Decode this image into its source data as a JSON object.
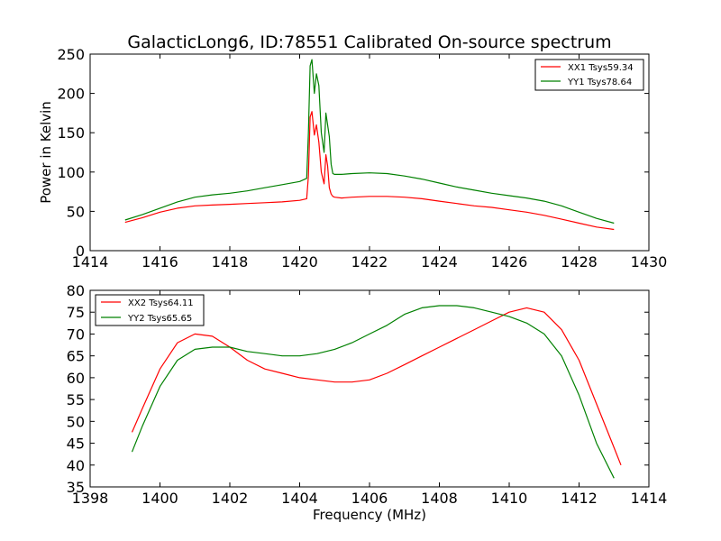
{
  "figure": {
    "title": "GalacticLong6, ID:78551 Calibrated On-source spectrum"
  },
  "chart_data": [
    {
      "type": "line",
      "title": "GalacticLong6, ID:78551 Calibrated On-source spectrum",
      "xlabel": "",
      "ylabel": "Power in Kelvin",
      "xlim": [
        1414,
        1430
      ],
      "ylim": [
        0,
        250
      ],
      "xticks": [
        1414,
        1416,
        1418,
        1420,
        1422,
        1424,
        1426,
        1428,
        1430
      ],
      "yticks": [
        0,
        50,
        100,
        150,
        200,
        250
      ],
      "grid": false,
      "legend_position": "top-right",
      "series": [
        {
          "name": "XX1 Tsys59.34",
          "color": "#ff0000",
          "x": [
            1415.0,
            1415.5,
            1416.0,
            1416.5,
            1417.0,
            1417.5,
            1418.0,
            1418.5,
            1419.0,
            1419.5,
            1420.0,
            1420.2,
            1420.25,
            1420.3,
            1420.35,
            1420.42,
            1420.48,
            1420.55,
            1420.62,
            1420.7,
            1420.75,
            1420.8,
            1420.85,
            1420.9,
            1420.95,
            1421.0,
            1421.2,
            1421.5,
            1422.0,
            1422.5,
            1423.0,
            1423.5,
            1424.0,
            1424.5,
            1425.0,
            1425.5,
            1426.0,
            1426.5,
            1427.0,
            1427.5,
            1428.0,
            1428.5,
            1429.0
          ],
          "y": [
            36,
            42,
            49,
            54,
            57,
            58,
            59,
            60,
            61,
            62,
            64,
            66,
            95,
            170,
            177,
            147,
            160,
            138,
            100,
            85,
            122,
            108,
            80,
            72,
            69,
            68,
            67,
            68,
            69,
            69,
            68,
            66,
            63,
            60,
            57,
            55,
            52,
            49,
            45,
            40,
            35,
            30,
            27
          ]
        },
        {
          "name": "YY1 Tsys78.64",
          "color": "#008000",
          "x": [
            1415.0,
            1415.5,
            1416.0,
            1416.5,
            1417.0,
            1417.5,
            1418.0,
            1418.5,
            1419.0,
            1419.5,
            1420.0,
            1420.2,
            1420.25,
            1420.3,
            1420.35,
            1420.42,
            1420.48,
            1420.55,
            1420.62,
            1420.7,
            1420.75,
            1420.8,
            1420.85,
            1420.9,
            1420.95,
            1421.0,
            1421.2,
            1421.5,
            1422.0,
            1422.5,
            1423.0,
            1423.5,
            1424.0,
            1424.5,
            1425.0,
            1425.5,
            1426.0,
            1426.5,
            1427.0,
            1427.5,
            1428.0,
            1428.5,
            1429.0
          ],
          "y": [
            39,
            46,
            54,
            62,
            68,
            71,
            73,
            76,
            80,
            84,
            88,
            92,
            150,
            235,
            243,
            200,
            225,
            210,
            150,
            125,
            175,
            160,
            145,
            110,
            98,
            97,
            97,
            98,
            99,
            98,
            95,
            91,
            86,
            81,
            77,
            73,
            70,
            67,
            63,
            57,
            49,
            41,
            35
          ]
        }
      ]
    },
    {
      "type": "line",
      "title": "",
      "xlabel": "Frequency (MHz)",
      "ylabel": "",
      "xlim": [
        1398,
        1414
      ],
      "ylim": [
        35,
        80
      ],
      "xticks": [
        1398,
        1400,
        1402,
        1404,
        1406,
        1408,
        1410,
        1412,
        1414
      ],
      "yticks": [
        35,
        40,
        45,
        50,
        55,
        60,
        65,
        70,
        75,
        80
      ],
      "grid": false,
      "legend_position": "top-left",
      "series": [
        {
          "name": "XX2 Tsys64.11",
          "color": "#ff0000",
          "x": [
            1399.2,
            1399.5,
            1400.0,
            1400.5,
            1401.0,
            1401.5,
            1402.0,
            1402.5,
            1403.0,
            1403.5,
            1404.0,
            1404.5,
            1405.0,
            1405.5,
            1406.0,
            1406.5,
            1407.0,
            1407.5,
            1408.0,
            1408.5,
            1409.0,
            1409.5,
            1410.0,
            1410.5,
            1411.0,
            1411.5,
            1412.0,
            1412.5,
            1413.0,
            1413.2
          ],
          "y": [
            47.5,
            53,
            62,
            68,
            70,
            69.5,
            67,
            64,
            62,
            61,
            60,
            59.5,
            59,
            59,
            59.5,
            61,
            63,
            65,
            67,
            69,
            71,
            73,
            75,
            76,
            75,
            71,
            64,
            54,
            44,
            40
          ]
        },
        {
          "name": "YY2 Tsys65.65",
          "color": "#008000",
          "x": [
            1399.2,
            1399.5,
            1400.0,
            1400.5,
            1401.0,
            1401.5,
            1402.0,
            1402.5,
            1403.0,
            1403.5,
            1404.0,
            1404.5,
            1405.0,
            1405.5,
            1406.0,
            1406.5,
            1407.0,
            1407.5,
            1408.0,
            1408.5,
            1409.0,
            1409.5,
            1410.0,
            1410.5,
            1411.0,
            1411.5,
            1412.0,
            1412.5,
            1413.0
          ],
          "y": [
            43,
            49,
            58,
            64,
            66.5,
            67,
            67,
            66,
            65.5,
            65,
            65,
            65.5,
            66.5,
            68,
            70,
            72,
            74.5,
            76,
            76.5,
            76.5,
            76,
            75,
            74,
            72.5,
            70,
            65,
            56,
            45,
            37
          ]
        }
      ]
    }
  ]
}
